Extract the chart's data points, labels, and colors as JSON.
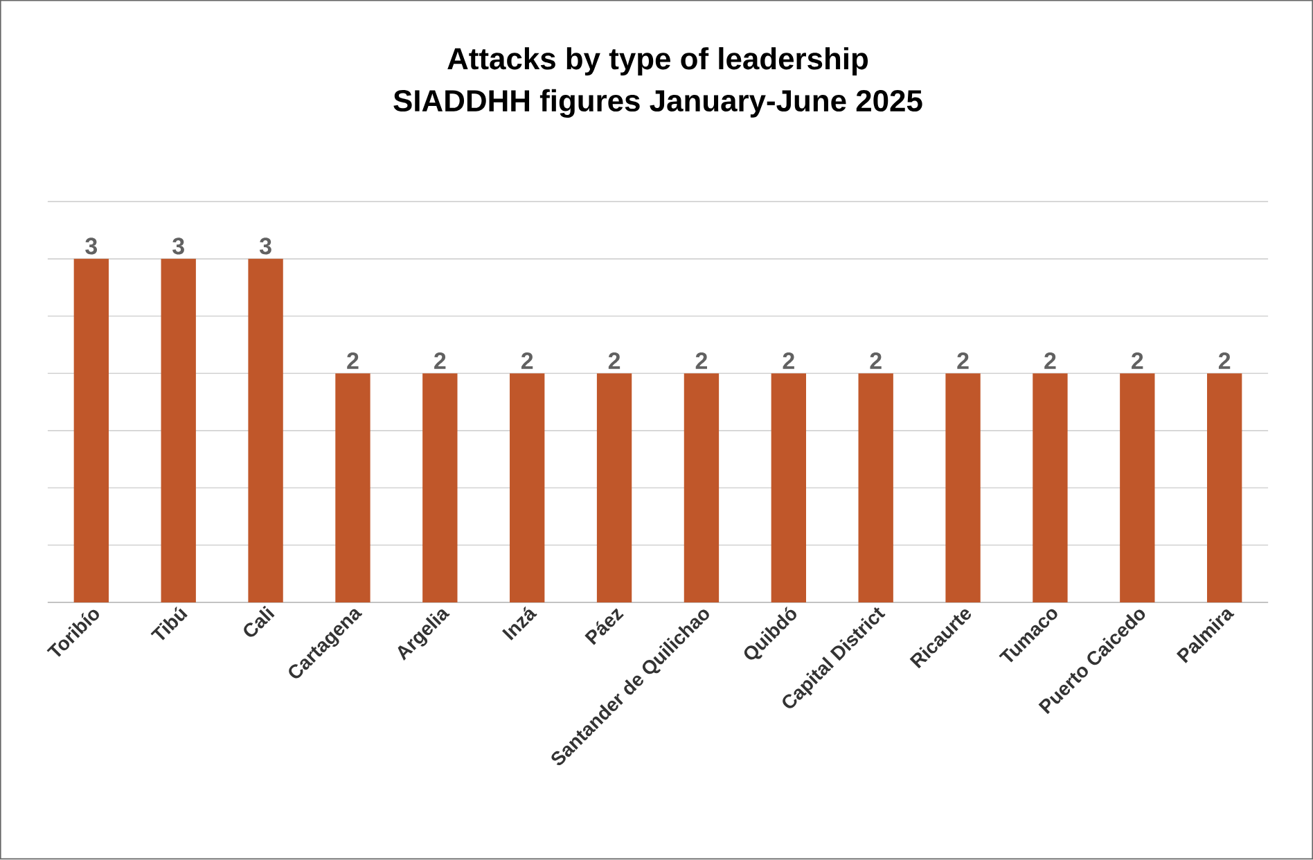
{
  "chart_data": {
    "type": "bar",
    "title": "Attacks by type of leadership",
    "subtitle": "SIADDHH figures January-June 2025",
    "categories": [
      "Toribío",
      "Tibú",
      "Cali",
      "Cartagena",
      "Argelia",
      "Inzá",
      "Páez",
      "Santander de Quilichao",
      "Quibdó",
      "Capital District",
      "Ricaurte",
      "Tumaco",
      "Puerto Caicedo",
      "Palmira"
    ],
    "values": [
      3,
      3,
      3,
      2,
      2,
      2,
      2,
      2,
      2,
      2,
      2,
      2,
      2,
      2
    ],
    "color": "#c0572a",
    "ylim": [
      0,
      3.5
    ],
    "yticks": [
      {
        "value": 0,
        "label": null
      },
      {
        "value": 0.5,
        "label": null
      },
      {
        "value": 1,
        "label": null
      },
      {
        "value": 1.5,
        "label": null
      },
      {
        "value": 2,
        "label": null
      },
      {
        "value": 2.5,
        "label": null
      },
      {
        "value": 3,
        "label": null
      },
      {
        "value": 3.5,
        "label": null
      }
    ],
    "tick_labels": "x",
    "grid": "y",
    "data_labels": true
  }
}
